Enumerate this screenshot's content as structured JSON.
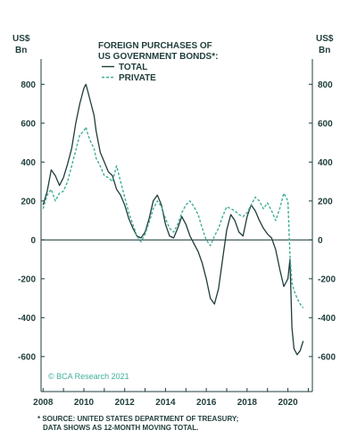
{
  "chart_data": {
    "type": "line",
    "title_lines": [
      "FOREIGN PURCHASES OF",
      "US GOVERNMENT BONDS*:"
    ],
    "unit_left": [
      "US$",
      "Bn"
    ],
    "unit_right": [
      "US$",
      "Bn"
    ],
    "xlim": [
      2007.9,
      2021.2
    ],
    "ylim": [
      -780,
      930
    ],
    "x_ticks": [
      2008,
      2010,
      2012,
      2014,
      2016,
      2018,
      2020
    ],
    "y_ticks": [
      800,
      600,
      400,
      200,
      0,
      -200,
      -400,
      -600
    ],
    "zero_line": true,
    "grid": false,
    "legend_position": "top-left",
    "series": [
      {
        "name": "TOTAL",
        "color": "#1f3d3b",
        "style": "solid",
        "x": [
          2008.0,
          2008.2,
          2008.4,
          2008.6,
          2008.8,
          2009.0,
          2009.2,
          2009.4,
          2009.6,
          2009.8,
          2010.0,
          2010.1,
          2010.2,
          2010.35,
          2010.5,
          2010.6,
          2010.8,
          2011.0,
          2011.2,
          2011.4,
          2011.6,
          2011.8,
          2012.0,
          2012.2,
          2012.4,
          2012.6,
          2012.8,
          2013.0,
          2013.2,
          2013.4,
          2013.6,
          2013.8,
          2014.0,
          2014.2,
          2014.4,
          2014.6,
          2014.8,
          2015.0,
          2015.2,
          2015.4,
          2015.6,
          2015.8,
          2016.0,
          2016.2,
          2016.4,
          2016.6,
          2016.8,
          2017.0,
          2017.2,
          2017.4,
          2017.6,
          2017.8,
          2018.0,
          2018.2,
          2018.4,
          2018.6,
          2018.8,
          2019.0,
          2019.2,
          2019.4,
          2019.6,
          2019.8,
          2020.0,
          2020.1,
          2020.2,
          2020.3,
          2020.45,
          2020.6,
          2020.75
        ],
        "y": [
          180,
          250,
          360,
          330,
          280,
          320,
          390,
          470,
          600,
          700,
          780,
          800,
          760,
          700,
          640,
          560,
          450,
          400,
          350,
          330,
          260,
          230,
          180,
          110,
          60,
          20,
          10,
          40,
          110,
          200,
          230,
          180,
          80,
          20,
          10,
          60,
          120,
          80,
          20,
          -20,
          -60,
          -120,
          -200,
          -300,
          -330,
          -250,
          -100,
          50,
          130,
          100,
          40,
          20,
          120,
          180,
          150,
          100,
          60,
          30,
          10,
          -50,
          -150,
          -240,
          -200,
          -100,
          -450,
          -560,
          -590,
          -570,
          -520
        ]
      },
      {
        "name": "PRIVATE",
        "color": "#3fae9a",
        "style": "dashed",
        "x": [
          2008.0,
          2008.2,
          2008.4,
          2008.6,
          2008.8,
          2009.0,
          2009.2,
          2009.4,
          2009.6,
          2009.8,
          2010.0,
          2010.1,
          2010.2,
          2010.35,
          2010.5,
          2010.6,
          2010.8,
          2011.0,
          2011.2,
          2011.4,
          2011.6,
          2011.8,
          2012.0,
          2012.2,
          2012.4,
          2012.6,
          2012.8,
          2013.0,
          2013.2,
          2013.4,
          2013.6,
          2013.8,
          2014.0,
          2014.2,
          2014.4,
          2014.6,
          2014.8,
          2015.0,
          2015.2,
          2015.4,
          2015.6,
          2015.8,
          2016.0,
          2016.2,
          2016.4,
          2016.6,
          2016.8,
          2017.0,
          2017.2,
          2017.4,
          2017.6,
          2017.8,
          2018.0,
          2018.2,
          2018.4,
          2018.6,
          2018.8,
          2019.0,
          2019.2,
          2019.4,
          2019.6,
          2019.8,
          2020.0,
          2020.1,
          2020.2,
          2020.3,
          2020.45,
          2020.6,
          2020.75
        ],
        "y": [
          160,
          230,
          260,
          200,
          240,
          250,
          300,
          380,
          460,
          540,
          560,
          580,
          540,
          500,
          470,
          420,
          380,
          330,
          320,
          300,
          380,
          300,
          220,
          140,
          80,
          20,
          -10,
          30,
          90,
          160,
          200,
          170,
          110,
          60,
          40,
          80,
          140,
          180,
          200,
          170,
          130,
          60,
          0,
          -30,
          20,
          60,
          120,
          170,
          160,
          150,
          130,
          120,
          140,
          180,
          220,
          200,
          160,
          190,
          150,
          100,
          160,
          240,
          200,
          -80,
          -220,
          -260,
          -300,
          -330,
          -350
        ]
      }
    ],
    "annotations": {
      "credit": "© BCA Research 2021",
      "footnote": [
        "* SOURCE: UNITED STATES DEPARTMENT OF TREASURY;",
        "DATA SHOWS AS 12-MONTH MOVING TOTAL."
      ]
    }
  }
}
